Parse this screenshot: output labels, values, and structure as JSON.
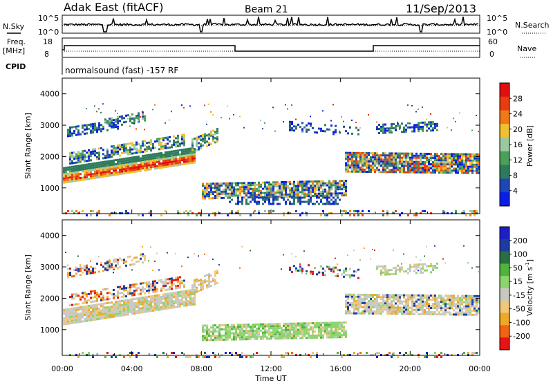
{
  "header": {
    "title": "Adak East (fitACF)",
    "beam": "Beam 21",
    "date": "11/Sep/2013"
  },
  "panels": {
    "nsky_label": "N.Sky",
    "nsearch_label": "N.Search",
    "log_ticks": [
      "10^5",
      "10^0"
    ],
    "freq_label": [
      "Freq.",
      "[MHz]"
    ],
    "freq_ticks": [
      "18",
      "8"
    ],
    "nave_label": "Nave",
    "nave_ticks": [
      "60",
      "0"
    ],
    "cpid_label": "CPID",
    "cpid_text": "normalsound (fast) -157 RF"
  },
  "colors": {
    "power_scale": [
      "#0a1ee6",
      "#1e46b4",
      "#2e7a5c",
      "#4aa05a",
      "#9ac8a0",
      "#f0c030",
      "#f07818",
      "#e83c10",
      "#e01010"
    ],
    "velocity_scale": [
      "#e61414",
      "#f06414",
      "#f0a828",
      "#f0c878",
      "#c8c8c0",
      "#8cd46e",
      "#50b43c",
      "#2a6e46",
      "#1e3ca0",
      "#1e1ec8"
    ]
  },
  "chart_data": [
    {
      "type": "heatmap",
      "name": "power",
      "ylabel": "Slant Range [km]",
      "yticks": [
        "1000",
        "2000",
        "3000",
        "4000"
      ],
      "ylim": [
        180,
        4500
      ],
      "xlim": [
        "00:00",
        "24:00"
      ],
      "colorbar_label": "Power [dB]",
      "colorbar_ticks": [
        "4",
        "8",
        "12",
        "16",
        "20",
        "24",
        "28"
      ],
      "colorbar_range": [
        0,
        30
      ]
    },
    {
      "type": "heatmap",
      "name": "velocity",
      "ylabel": "Slant Range [km]",
      "yticks": [
        "1000",
        "2000",
        "3000",
        "4000"
      ],
      "ylim": [
        180,
        4500
      ],
      "xlim": [
        "00:00",
        "24:00"
      ],
      "colorbar_label": "Velocity [m s",
      "colorbar_label_sup": "-1",
      "colorbar_label_end": "]",
      "colorbar_ticks": [
        "-200",
        "-100",
        "-50",
        "-15",
        "15",
        "50",
        "100",
        "200"
      ]
    }
  ],
  "xaxis": {
    "ticks": [
      "00:00",
      "04:00",
      "08:00",
      "12:00",
      "16:00",
      "20:00",
      "00:00"
    ],
    "label": "Time UT"
  }
}
